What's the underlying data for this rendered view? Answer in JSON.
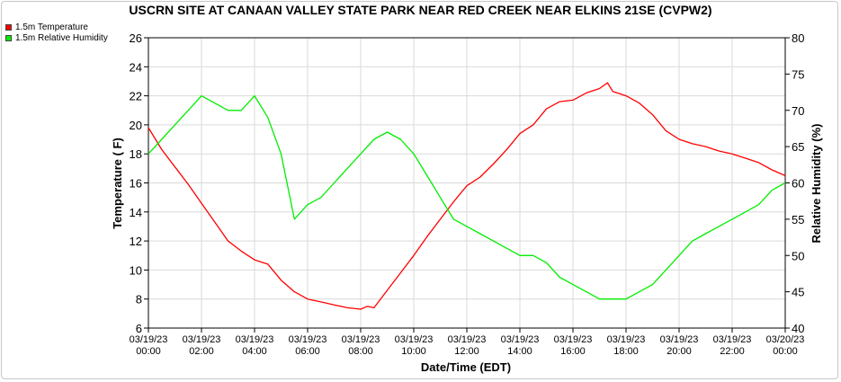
{
  "chart_data": {
    "type": "line",
    "title": "USCRN SITE AT CANAAN VALLEY STATE PARK NEAR RED CREEK NEAR ELKINS 21SE (CVPW2)",
    "xlabel": "Date/Time (EDT)",
    "ylabel": "Temperature ( F)",
    "y2label": "Relative Humidity (%)",
    "xlim": [
      0,
      24
    ],
    "ylim": [
      6,
      26
    ],
    "y2lim": [
      40,
      80
    ],
    "grid": true,
    "legend_position": "top-left",
    "x_ticks": [
      0,
      2,
      4,
      6,
      8,
      10,
      12,
      14,
      16,
      18,
      20,
      22,
      24
    ],
    "x_tick_labels": [
      [
        "03/19/23",
        "00:00"
      ],
      [
        "03/19/23",
        "02:00"
      ],
      [
        "03/19/23",
        "04:00"
      ],
      [
        "03/19/23",
        "06:00"
      ],
      [
        "03/19/23",
        "08:00"
      ],
      [
        "03/19/23",
        "10:00"
      ],
      [
        "03/19/23",
        "12:00"
      ],
      [
        "03/19/23",
        "14:00"
      ],
      [
        "03/19/23",
        "16:00"
      ],
      [
        "03/19/23",
        "18:00"
      ],
      [
        "03/19/23",
        "20:00"
      ],
      [
        "03/19/23",
        "22:00"
      ],
      [
        "03/20/23",
        "00:00"
      ]
    ],
    "y_ticks": [
      "6",
      "8",
      "10",
      "12",
      "14",
      "16",
      "18",
      "20",
      "22",
      "24",
      "26"
    ],
    "y2_ticks": [
      "40",
      "45",
      "50",
      "55",
      "60",
      "65",
      "70",
      "75",
      "80"
    ],
    "series": [
      {
        "name": "1.5m Temperature",
        "color": "#ff0000",
        "axis": "left",
        "x": [
          0,
          0.5,
          1,
          1.5,
          2,
          2.5,
          3,
          3.5,
          4,
          4.5,
          5,
          5.5,
          6,
          6.5,
          7,
          7.5,
          8,
          8.25,
          8.5,
          9,
          9.5,
          10,
          10.5,
          11,
          11.5,
          12,
          12.5,
          13,
          13.5,
          14,
          14.5,
          15,
          15.5,
          16,
          16.5,
          17,
          17.3,
          17.5,
          18,
          18.5,
          19,
          19.5,
          20,
          20.5,
          21,
          21.5,
          22,
          22.5,
          23,
          23.5,
          24
        ],
        "values": [
          19.8,
          18.3,
          17.1,
          15.9,
          14.6,
          13.3,
          12.0,
          11.3,
          10.7,
          10.4,
          9.3,
          8.5,
          8.0,
          7.8,
          7.6,
          7.4,
          7.3,
          7.5,
          7.4,
          8.6,
          9.8,
          11.0,
          12.3,
          13.5,
          14.7,
          15.8,
          16.4,
          17.3,
          18.3,
          19.4,
          20.0,
          21.1,
          21.6,
          21.7,
          22.2,
          22.5,
          22.9,
          22.3,
          22.0,
          21.5,
          20.7,
          19.6,
          19.0,
          18.7,
          18.5,
          18.2,
          18.0,
          17.7,
          17.4,
          16.9,
          16.5
        ]
      },
      {
        "name": "1.5m Relative Humidity",
        "color": "#00ee00",
        "axis": "right",
        "x": [
          0,
          0.5,
          1,
          1.5,
          2,
          2.5,
          3,
          3.5,
          4,
          4.5,
          5,
          5.5,
          6,
          6.5,
          7,
          7.5,
          8,
          8.5,
          9,
          9.5,
          10,
          10.5,
          11,
          11.5,
          12,
          12.5,
          13,
          13.5,
          14,
          14.5,
          15,
          15.5,
          16,
          16.5,
          17,
          17.5,
          18,
          18.5,
          19,
          19.5,
          20,
          20.5,
          21,
          21.5,
          22,
          22.5,
          23,
          23.5,
          24
        ],
        "values": [
          64,
          66,
          68,
          70,
          72,
          71,
          70,
          70,
          72,
          69,
          64,
          55,
          57,
          58,
          60,
          62,
          64,
          66,
          67,
          66,
          64,
          61,
          58,
          55,
          54,
          53,
          52,
          51,
          50,
          50,
          49,
          47,
          46,
          45,
          44,
          44,
          44,
          45,
          46,
          48,
          50,
          52,
          53,
          54,
          55,
          56,
          57,
          59,
          60
        ]
      }
    ]
  }
}
